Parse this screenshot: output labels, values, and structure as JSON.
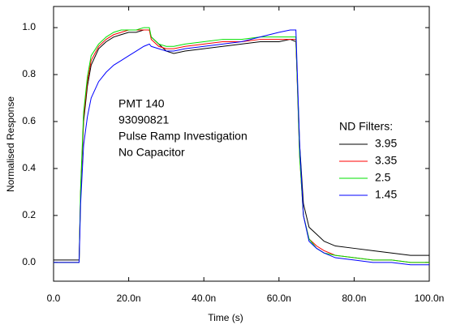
{
  "chart_data": {
    "type": "line",
    "x_label": "Time (s)",
    "y_label": "Normalised Response",
    "annotations": [
      "PMT 140",
      "93090821",
      "Pulse Ramp Investigation",
      "No Capacitor"
    ],
    "legend_title": "ND Filters:",
    "legend": "right",
    "xlim": [
      0,
      1e-07
    ],
    "ylim": [
      -0.08,
      1.09
    ],
    "xticks": [
      {
        "value": 0,
        "label": "0.0"
      },
      {
        "value": 2e-08,
        "label": "20.0n"
      },
      {
        "value": 4e-08,
        "label": "40.0n"
      },
      {
        "value": 6e-08,
        "label": "60.0n"
      },
      {
        "value": 8e-08,
        "label": "80.0n"
      },
      {
        "value": 1e-07,
        "label": "100.0n"
      }
    ],
    "yticks": [
      {
        "value": 0,
        "label": "0.0"
      },
      0.2,
      0.4,
      0.6,
      0.8,
      {
        "value": 1,
        "label": "1.0"
      }
    ],
    "x": [
      0,
      5e-09,
      6.8e-09,
      7.2e-09,
      8e-09,
      9e-09,
      1e-08,
      1.2e-08,
      1.4e-08,
      1.6e-08,
      1.8e-08,
      2e-08,
      2.2e-08,
      2.4e-08,
      2.55e-08,
      2.6e-08,
      2.8e-08,
      3e-08,
      3.2e-08,
      3.5e-08,
      4e-08,
      4.5e-08,
      5e-08,
      5.5e-08,
      6e-08,
      6.3e-08,
      6.45e-08,
      6.55e-08,
      6.65e-08,
      6.8e-08,
      7e-08,
      7.2e-08,
      7.5e-08,
      8e-08,
      8.5e-08,
      9e-08,
      9.5e-08,
      1e-07
    ],
    "series": [
      {
        "name": "3.95",
        "color": "#000000",
        "values": [
          0.01,
          0.01,
          0.01,
          0.3,
          0.6,
          0.75,
          0.84,
          0.91,
          0.94,
          0.96,
          0.97,
          0.98,
          0.98,
          0.99,
          0.99,
          0.96,
          0.93,
          0.9,
          0.89,
          0.9,
          0.91,
          0.92,
          0.93,
          0.94,
          0.94,
          0.95,
          0.94,
          0.5,
          0.25,
          0.15,
          0.12,
          0.09,
          0.07,
          0.06,
          0.05,
          0.04,
          0.03,
          0.03
        ]
      },
      {
        "name": "3.35",
        "color": "#ff0000",
        "values": [
          0,
          0,
          0,
          0.3,
          0.62,
          0.77,
          0.86,
          0.92,
          0.95,
          0.97,
          0.98,
          0.99,
          0.99,
          0.99,
          0.99,
          0.95,
          0.92,
          0.91,
          0.91,
          0.92,
          0.93,
          0.94,
          0.94,
          0.95,
          0.95,
          0.95,
          0.95,
          0.45,
          0.2,
          0.1,
          0.07,
          0.05,
          0.03,
          0.02,
          0.01,
          0.01,
          0,
          0
        ]
      },
      {
        "name": "2.5",
        "color": "#00e000",
        "values": [
          0,
          0,
          0,
          0.32,
          0.64,
          0.79,
          0.88,
          0.93,
          0.96,
          0.98,
          0.99,
          0.99,
          0.99,
          1,
          1,
          0.96,
          0.93,
          0.92,
          0.92,
          0.93,
          0.94,
          0.95,
          0.95,
          0.96,
          0.96,
          0.96,
          0.96,
          0.45,
          0.2,
          0.1,
          0.06,
          0.04,
          0.03,
          0.02,
          0.01,
          0.01,
          0,
          0
        ]
      },
      {
        "name": "1.45",
        "color": "#0000ff",
        "values": [
          0,
          0,
          0,
          0.25,
          0.5,
          0.62,
          0.7,
          0.77,
          0.81,
          0.84,
          0.86,
          0.88,
          0.9,
          0.92,
          0.93,
          0.92,
          0.91,
          0.9,
          0.9,
          0.91,
          0.92,
          0.93,
          0.94,
          0.96,
          0.98,
          0.99,
          0.99,
          0.5,
          0.2,
          0.09,
          0.06,
          0.04,
          0.02,
          0.01,
          0,
          0,
          -0.01,
          -0.01
        ]
      }
    ]
  }
}
